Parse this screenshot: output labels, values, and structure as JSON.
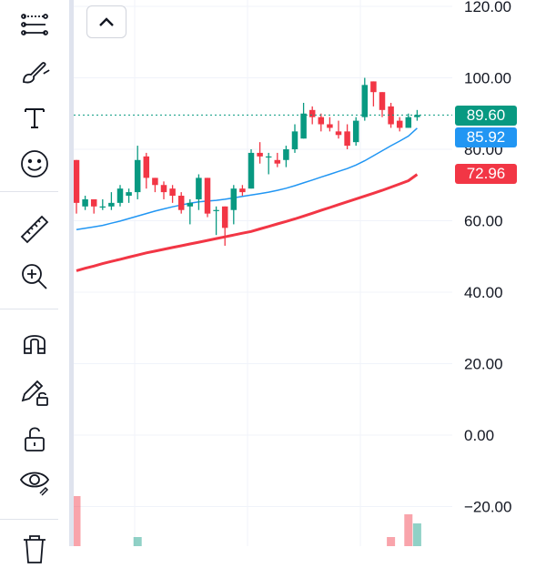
{
  "toolbar": {
    "tools": [
      {
        "name": "trend-line-icon"
      },
      {
        "name": "brush-icon"
      },
      {
        "name": "text-icon"
      },
      {
        "name": "emoji-icon"
      },
      {
        "name": "ruler-icon"
      },
      {
        "name": "zoom-in-icon"
      },
      {
        "name": "magnet-icon"
      },
      {
        "name": "lock-drawing-icon"
      },
      {
        "name": "unlock-icon"
      },
      {
        "name": "visibility-icon"
      },
      {
        "name": "trash-icon"
      }
    ]
  },
  "price_tags": {
    "last": {
      "label": "89.60",
      "color": "#089981"
    },
    "ma_short": {
      "label": "85.92",
      "color": "#2196f3"
    },
    "ma_long": {
      "label": "72.96",
      "color": "#f23645"
    }
  },
  "chart_data": {
    "type": "candlestick",
    "ylim": [
      -25,
      125
    ],
    "yticks": [
      "120.00",
      "100.00",
      "80.00",
      "60.00",
      "40.00",
      "20.00",
      "0.00",
      "−20.00"
    ],
    "ytick_values": [
      120,
      100,
      80,
      60,
      40,
      20,
      0,
      -20
    ],
    "up_color": "#089981",
    "down_color": "#f23645",
    "candles": [
      {
        "o": 77,
        "c": 65,
        "h": 77,
        "l": 62
      },
      {
        "o": 64,
        "c": 66,
        "h": 67,
        "l": 63
      },
      {
        "o": 66,
        "c": 64,
        "h": 66,
        "l": 62
      },
      {
        "o": 64,
        "c": 64,
        "h": 66,
        "l": 63
      },
      {
        "o": 64,
        "c": 65,
        "h": 68,
        "l": 63
      },
      {
        "o": 65,
        "c": 69,
        "h": 70,
        "l": 64
      },
      {
        "o": 67,
        "c": 68,
        "h": 69,
        "l": 65
      },
      {
        "o": 68,
        "c": 77,
        "h": 81,
        "l": 66
      },
      {
        "o": 78,
        "c": 72,
        "h": 79,
        "l": 69
      },
      {
        "o": 72,
        "c": 70,
        "h": 72,
        "l": 68
      },
      {
        "o": 70,
        "c": 68,
        "h": 71,
        "l": 66
      },
      {
        "o": 69,
        "c": 67,
        "h": 70,
        "l": 65
      },
      {
        "o": 67,
        "c": 63,
        "h": 68,
        "l": 62
      },
      {
        "o": 64,
        "c": 65,
        "h": 66,
        "l": 59
      },
      {
        "o": 66,
        "c": 72,
        "h": 73,
        "l": 63
      },
      {
        "o": 72,
        "c": 62,
        "h": 72,
        "l": 61
      },
      {
        "o": 63,
        "c": 63,
        "h": 64,
        "l": 56
      },
      {
        "o": 64,
        "c": 58,
        "h": 64,
        "l": 53
      },
      {
        "o": 63,
        "c": 69,
        "h": 70,
        "l": 59
      },
      {
        "o": 69,
        "c": 68,
        "h": 70,
        "l": 67
      },
      {
        "o": 69,
        "c": 79,
        "h": 80,
        "l": 69
      },
      {
        "o": 79,
        "c": 78,
        "h": 82,
        "l": 76
      },
      {
        "o": 78,
        "c": 78,
        "h": 79,
        "l": 73
      },
      {
        "o": 77,
        "c": 76,
        "h": 79,
        "l": 75
      },
      {
        "o": 77,
        "c": 80,
        "h": 81,
        "l": 75
      },
      {
        "o": 80,
        "c": 85,
        "h": 87,
        "l": 79
      },
      {
        "o": 83,
        "c": 90,
        "h": 93,
        "l": 83
      },
      {
        "o": 91,
        "c": 89,
        "h": 92,
        "l": 87
      },
      {
        "o": 89,
        "c": 87,
        "h": 90,
        "l": 85
      },
      {
        "o": 87,
        "c": 86,
        "h": 89,
        "l": 85
      },
      {
        "o": 85,
        "c": 84,
        "h": 88,
        "l": 83
      },
      {
        "o": 85,
        "c": 81,
        "h": 87,
        "l": 80
      },
      {
        "o": 82,
        "c": 88,
        "h": 89,
        "l": 81
      },
      {
        "o": 89,
        "c": 98,
        "h": 100,
        "l": 88
      },
      {
        "o": 99,
        "c": 96,
        "h": 99,
        "l": 92
      },
      {
        "o": 96,
        "c": 91,
        "h": 96,
        "l": 89
      },
      {
        "o": 92,
        "c": 87,
        "h": 93,
        "l": 86
      },
      {
        "o": 88,
        "c": 86,
        "h": 89,
        "l": 85
      },
      {
        "o": 86,
        "c": 89,
        "h": 90,
        "l": 86
      },
      {
        "o": 89,
        "c": 89.6,
        "h": 91,
        "l": 88
      }
    ],
    "ma_short": [
      57.5,
      57.9,
      58.3,
      58.7,
      59.3,
      59.9,
      60.6,
      61.3,
      62,
      62.7,
      63.3,
      63.9,
      64.4,
      64.9,
      65.3,
      65.5,
      65.7,
      66,
      66.4,
      66.8,
      67.2,
      67.6,
      68,
      68.5,
      69.1,
      69.8,
      70.6,
      71.4,
      72.2,
      73,
      73.8,
      74.6,
      75.6,
      76.8,
      78.2,
      79.6,
      81,
      82.3,
      83.7,
      85.92
    ],
    "ma_long": [
      46,
      46.7,
      47.3,
      48,
      48.6,
      49.2,
      49.8,
      50.4,
      51,
      51.5,
      52,
      52.5,
      53,
      53.5,
      54,
      54.5,
      55,
      55.5,
      56,
      56.5,
      57,
      57.7,
      58.4,
      59.1,
      59.8,
      60.5,
      61.3,
      62.1,
      62.9,
      63.7,
      64.5,
      65.3,
      66.1,
      66.9,
      67.7,
      68.5,
      69.4,
      70.3,
      71.2,
      72.96
    ],
    "volume_visible": [
      {
        "index": 0,
        "dir": "down",
        "level": 0.55
      },
      {
        "index": 7,
        "dir": "up",
        "level": 0.1
      },
      {
        "index": 36,
        "dir": "down",
        "level": 0.1
      },
      {
        "index": 38,
        "dir": "down",
        "level": 0.35
      },
      {
        "index": 39,
        "dir": "up",
        "level": 0.25
      }
    ]
  }
}
